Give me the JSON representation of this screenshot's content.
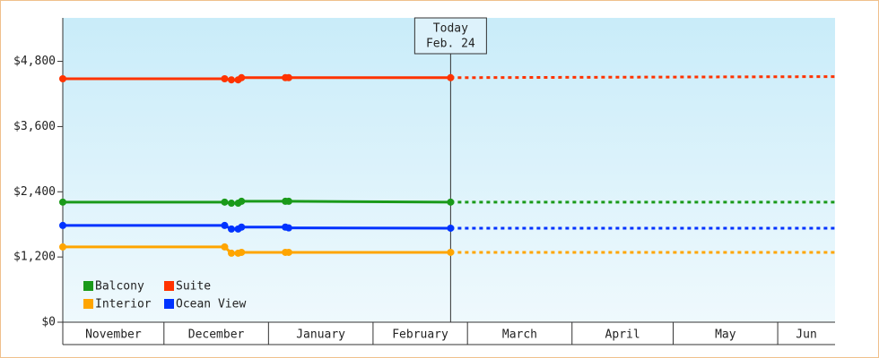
{
  "chart_data": {
    "type": "line",
    "x": [
      0,
      48,
      50,
      52,
      53,
      66,
      67,
      115
    ],
    "xlim": [
      0,
      229
    ],
    "xticks": [
      {
        "value": 0,
        "label": "November"
      },
      {
        "value": 30,
        "label": "December"
      },
      {
        "value": 61,
        "label": "January"
      },
      {
        "value": 92,
        "label": "February"
      },
      {
        "value": 120,
        "label": "March"
      },
      {
        "value": 151,
        "label": "April"
      },
      {
        "value": 181,
        "label": "May"
      },
      {
        "value": 212,
        "label": "Jun"
      }
    ],
    "ylim": [
      0,
      5600
    ],
    "yticks": [
      {
        "value": 0,
        "label": "$0"
      },
      {
        "value": 1200,
        "label": "$1,200"
      },
      {
        "value": 2400,
        "label": "$2,400"
      },
      {
        "value": 3600,
        "label": "$3,600"
      },
      {
        "value": 4800,
        "label": "$4,800"
      }
    ],
    "today_x": 115,
    "today_label": [
      "Today",
      "Feb. 24"
    ],
    "forecast_x": [
      115,
      229
    ],
    "series": [
      {
        "name": "Balcony",
        "color": "#1a9a1a",
        "values": [
          2210,
          2210,
          2190,
          2190,
          2225,
          2225,
          2225,
          2210
        ],
        "forecast": [
          2210,
          2210
        ]
      },
      {
        "name": "Suite",
        "color": "#ff3300",
        "values": [
          4480,
          4480,
          4460,
          4460,
          4500,
          4500,
          4500,
          4500
        ],
        "forecast": [
          4500,
          4520
        ]
      },
      {
        "name": "Interior",
        "color": "#ffa500",
        "values": [
          1385,
          1385,
          1270,
          1270,
          1285,
          1285,
          1285,
          1285
        ],
        "forecast": [
          1285,
          1285
        ]
      },
      {
        "name": "Ocean View",
        "color": "#0033ff",
        "values": [
          1780,
          1780,
          1715,
          1715,
          1750,
          1750,
          1735,
          1730
        ],
        "forecast": [
          1730,
          1730
        ]
      }
    ]
  }
}
